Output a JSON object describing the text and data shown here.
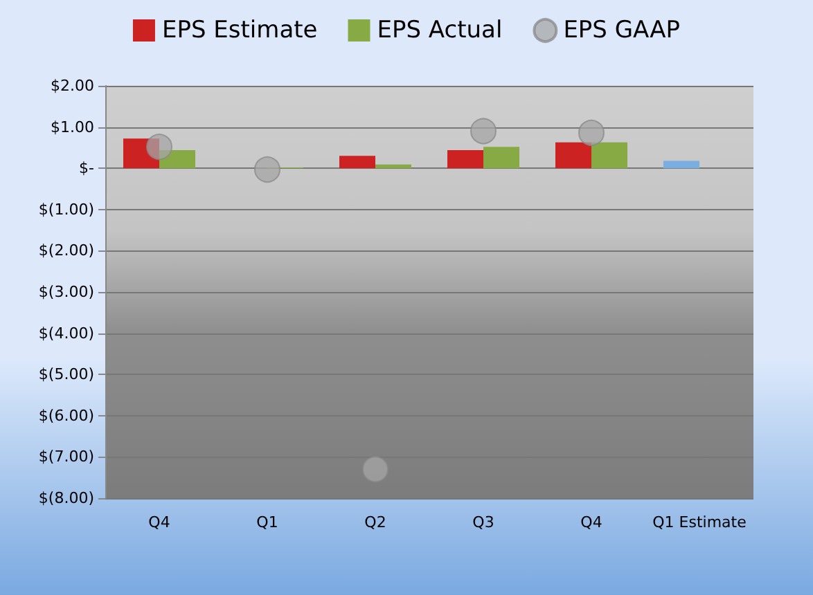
{
  "chart_data": {
    "type": "bar",
    "categories": [
      "Q4",
      "Q1",
      "Q2",
      "Q3",
      "Q4",
      "Q1 Estimate"
    ],
    "series": [
      {
        "name": "EPS Estimate",
        "color": "#cc2222",
        "colors": [
          "#cc2222",
          "#cc2222",
          "#cc2222",
          "#cc2222",
          "#cc2222",
          "#7aaee0"
        ],
        "values": [
          0.72,
          null,
          0.3,
          0.44,
          0.63,
          0.18
        ]
      },
      {
        "name": "EPS Actual",
        "color": "#88aa44",
        "values": [
          0.44,
          0.02,
          0.09,
          0.52,
          0.63,
          null
        ]
      },
      {
        "name": "EPS GAAP",
        "type": "scatter",
        "color": "#a6a6a6",
        "values": [
          0.52,
          -0.03,
          -7.3,
          0.9,
          0.86,
          null
        ]
      }
    ],
    "ylim": [
      -8,
      2
    ],
    "yticks": [
      {
        "value": -8,
        "label": "$(8.00)"
      },
      {
        "value": -7,
        "label": "$(7.00)"
      },
      {
        "value": -6,
        "label": "$(6.00)"
      },
      {
        "value": -5,
        "label": "$(5.00)"
      },
      {
        "value": -4,
        "label": "$(4.00)"
      },
      {
        "value": -3,
        "label": "$(3.00)"
      },
      {
        "value": -2,
        "label": "$(2.00)"
      },
      {
        "value": -1,
        "label": "$(1.00)"
      },
      {
        "value": 0,
        "label": "$-"
      },
      {
        "value": 1,
        "label": "$1.00"
      },
      {
        "value": 2,
        "label": "$2.00"
      }
    ],
    "grid": "y",
    "legend": "top",
    "marker": "circle"
  }
}
